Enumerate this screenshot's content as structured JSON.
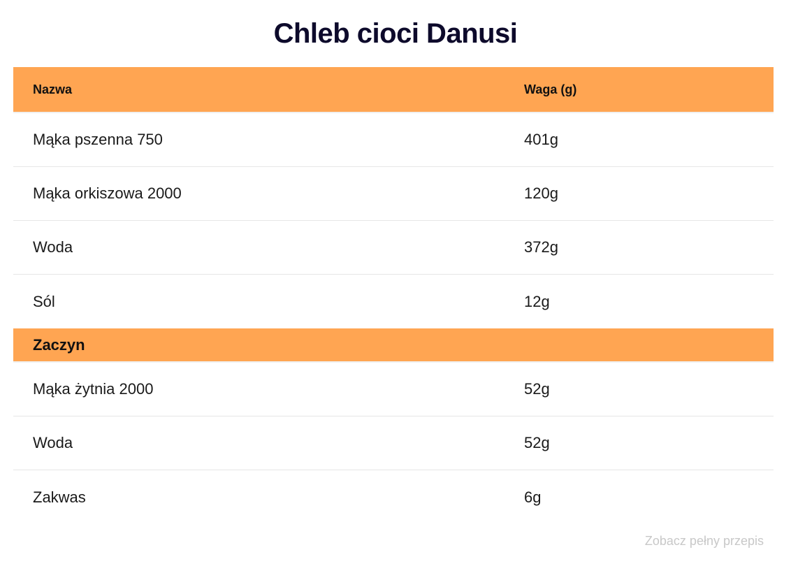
{
  "title": "Chleb cioci Danusi",
  "table": {
    "header": [
      "Nazwa",
      "Waga (g)"
    ],
    "sections": [
      {
        "rows": [
          [
            "Mąka pszenna 750",
            "401g"
          ],
          [
            "Mąka orkiszowa 2000",
            "120g"
          ],
          [
            "Woda",
            "372g"
          ],
          [
            "Sól",
            "12g"
          ]
        ]
      },
      {
        "title": "Zaczyn",
        "rows": [
          [
            "Mąka żytnia 2000",
            "52g"
          ],
          [
            "Woda",
            "52g"
          ],
          [
            "Zakwas",
            "6g"
          ]
        ]
      }
    ]
  },
  "link": "Zobacz pełny przepis"
}
